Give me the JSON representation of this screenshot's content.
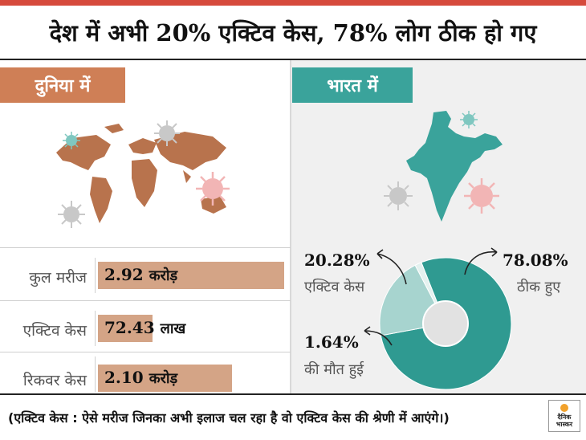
{
  "title": "देश में अभी 20% एक्टिव केस, 78% लोग ठीक हो गए",
  "world": {
    "tag": "दुनिया में",
    "rows": [
      {
        "label": "कुल मरीज",
        "value": "2.92",
        "unit": "करोड़",
        "amount": 2.92
      },
      {
        "label": "एक्टिव केस",
        "value": "72.43",
        "unit": "लाख",
        "amount": 0.7243
      },
      {
        "label": "रिकवर केस",
        "value": "2.10",
        "unit": "करोड़",
        "amount": 2.1
      }
    ]
  },
  "india": {
    "tag": "भारत में"
  },
  "chart_data": {
    "type": "pie",
    "slices": [
      {
        "pct_text": "78.08%",
        "label": "ठीक हुए",
        "value": 78.08,
        "color": "#2f9a91"
      },
      {
        "pct_text": "20.28%",
        "label": "एक्टिव केस",
        "value": 20.28,
        "color": "#a7d4cf"
      },
      {
        "pct_text": "1.64%",
        "label": "की मौत हुई",
        "value": 1.64,
        "color": "#e4f1ef"
      }
    ]
  },
  "colors": {
    "brand_red": "#d64a3c",
    "world_tag": "#cf7f56",
    "india_tag": "#3aa39b",
    "world_bar": "#d4a486",
    "map_brown": "#b8734d",
    "map_teal": "#3aa39b"
  },
  "footnote": "(एक्टिव केस : ऐसे मरीज जिनका अभी इलाज चल रहा है वो एक्टिव केस की श्रेणी में आएंगे।)",
  "logo": {
    "line1": "दैनिक",
    "line2": "भास्कर"
  }
}
